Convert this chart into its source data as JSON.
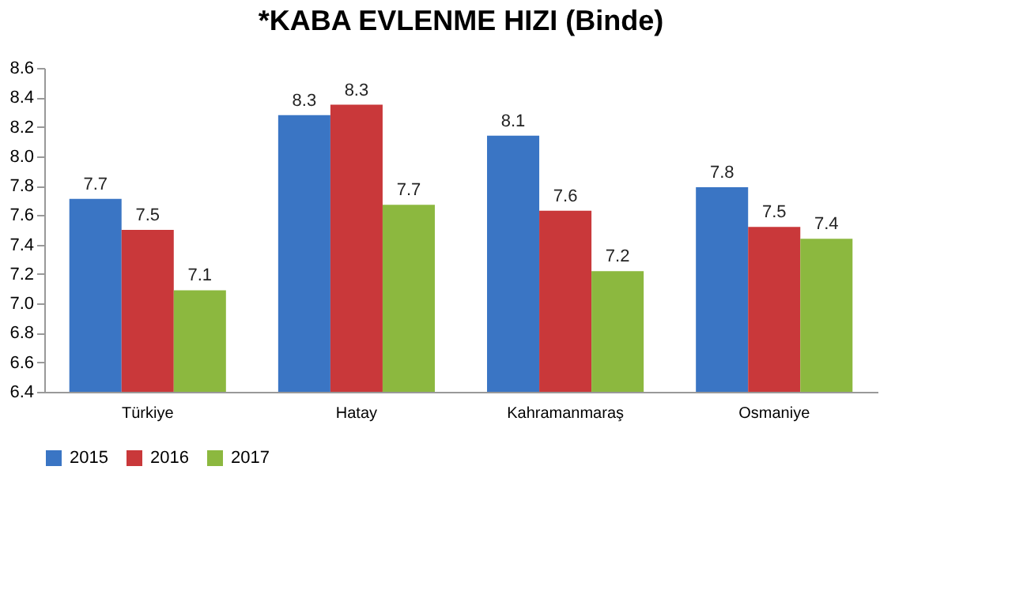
{
  "chart_data": {
    "type": "bar",
    "title": "*KABA EVLENME HIZI (Binde)",
    "categories": [
      "Türkiye",
      "Hatay",
      "Kahramanmaraş",
      "Osmaniye"
    ],
    "series": [
      {
        "name": "2015",
        "color": "#3a75c4",
        "values": [
          7.71,
          8.28,
          8.14,
          7.79
        ],
        "value_labels": [
          "7.7",
          "8.3",
          "8.1",
          "7.8"
        ]
      },
      {
        "name": "2016",
        "color": "#c9383a",
        "values": [
          7.5,
          8.35,
          7.63,
          7.52
        ],
        "value_labels": [
          "7.5",
          "8.3",
          "7.6",
          "7.5"
        ]
      },
      {
        "name": "2017",
        "color": "#8cb83f",
        "values": [
          7.09,
          7.67,
          7.22,
          7.44
        ],
        "value_labels": [
          "7.1",
          "7.7",
          "7.2",
          "7.4"
        ]
      }
    ],
    "ylim": [
      6.4,
      8.6
    ],
    "yticks": [
      6.4,
      6.6,
      6.8,
      {
        "value": 7,
        "label": "7.0"
      },
      7.2,
      7.4,
      7.6,
      7.8,
      {
        "value": 8,
        "label": "8.0"
      },
      8.2,
      8.4,
      8.6
    ],
    "grid": false,
    "legend": "bottom"
  }
}
